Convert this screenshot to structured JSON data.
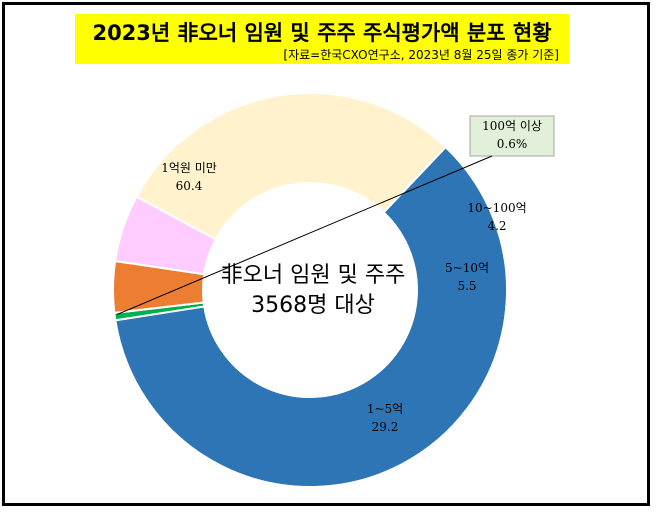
{
  "header": {
    "title": "2023년 非오너 임원 및 주주 주식평가액 분포 현황",
    "source": "[자료=한국CXO연구소, 2023년 8월 25일 종가 기준]"
  },
  "center_label": {
    "line1": "非오너 임원 및 주주",
    "line2": "3568명 대상"
  },
  "chart_data": {
    "type": "donut",
    "title": "2023년 非오너 임원 및 주주 주식평가액 분포 현황",
    "unit": "%",
    "categories": [
      "1억원 미만",
      "100억 이상",
      "10~100억",
      "5~10억",
      "1~5억"
    ],
    "values": [
      60.4,
      0.6,
      4.2,
      5.5,
      29.2
    ],
    "colors": [
      "#2e75b6",
      "#00b050",
      "#ed7d31",
      "#ffccff",
      "#fff2cc"
    ],
    "labels": [
      {
        "name": "1억원 미만",
        "value": "60.4"
      },
      {
        "name": "100억 이상",
        "value": "0.6%"
      },
      {
        "name": "10~100억",
        "value": "4.2"
      },
      {
        "name": "5~10억",
        "value": "5.5"
      },
      {
        "name": "1~5억",
        "value": "29.2"
      }
    ]
  }
}
